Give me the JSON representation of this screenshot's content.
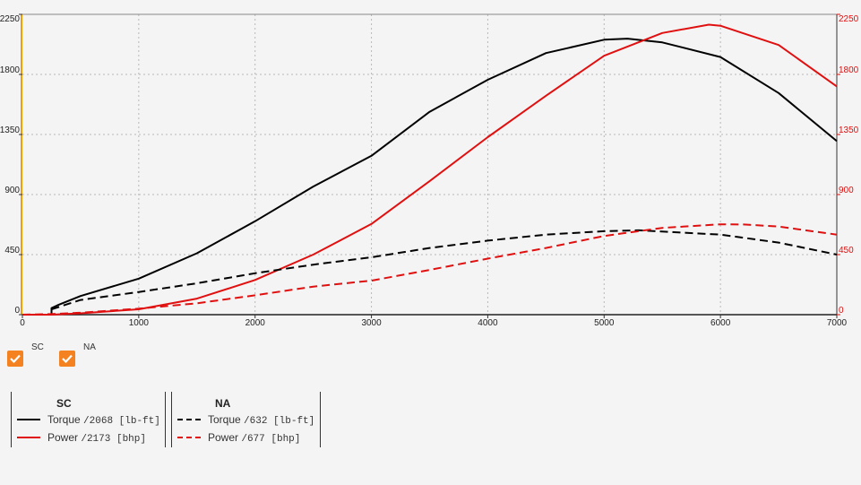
{
  "chart_data": {
    "type": "line",
    "x_range": [
      0,
      7000
    ],
    "x_ticks": [
      0,
      1000,
      2000,
      3000,
      4000,
      5000,
      6000,
      7000
    ],
    "y_left_range": [
      0,
      2250
    ],
    "y_left_ticks": [
      0,
      450,
      900,
      1350,
      1800,
      2250
    ],
    "y_right_range": [
      0,
      2250
    ],
    "y_right_ticks": [
      0,
      450,
      900,
      1350,
      1800,
      2250
    ],
    "grid": true,
    "colors": {
      "torque": "#000000",
      "power": "#e01010",
      "right_axis": "#e01010",
      "left_edge": "#f0a000"
    },
    "series": [
      {
        "group": "SC",
        "metric": "Torque",
        "style": "solid",
        "x": [
          0,
          250,
          250,
          300,
          500,
          1000,
          1500,
          2000,
          2500,
          3000,
          3500,
          4000,
          4500,
          5000,
          5200,
          5500,
          6000,
          6500,
          7000
        ],
        "y": [
          0,
          0,
          50,
          70,
          140,
          270,
          460,
          700,
          960,
          1190,
          1520,
          1760,
          1960,
          2060,
          2068,
          2040,
          1930,
          1660,
          1300
        ]
      },
      {
        "group": "SC",
        "metric": "Power",
        "style": "solid",
        "x": [
          0,
          250,
          500,
          1000,
          1500,
          2000,
          2500,
          3000,
          3500,
          4000,
          4500,
          5000,
          5500,
          5900,
          6000,
          6500,
          7000
        ],
        "y": [
          0,
          0,
          10,
          40,
          120,
          260,
          450,
          680,
          1000,
          1330,
          1640,
          1940,
          2110,
          2173,
          2165,
          2020,
          1710
        ]
      },
      {
        "group": "NA",
        "metric": "Torque",
        "style": "dashed",
        "x": [
          250,
          500,
          1000,
          1500,
          2000,
          2500,
          3000,
          3500,
          4000,
          4500,
          5000,
          5300,
          6000,
          6500,
          7000
        ],
        "y": [
          40,
          110,
          170,
          235,
          310,
          375,
          430,
          500,
          555,
          600,
          625,
          632,
          600,
          540,
          450
        ]
      },
      {
        "group": "NA",
        "metric": "Power",
        "style": "dashed",
        "x": [
          0,
          250,
          500,
          1000,
          1500,
          2000,
          2500,
          3000,
          3500,
          4000,
          4500,
          5000,
          5500,
          6000,
          6200,
          6500,
          7000
        ],
        "y": [
          0,
          5,
          15,
          45,
          85,
          145,
          210,
          255,
          335,
          420,
          500,
          590,
          650,
          677,
          676,
          660,
          600
        ]
      }
    ]
  },
  "toggles": [
    {
      "label": "SC",
      "checked": true
    },
    {
      "label": "NA",
      "checked": true
    }
  ],
  "legend": {
    "sc": {
      "title": "SC",
      "torque_name": "Torque",
      "torque_value": "/2068 [lb-ft]",
      "power_name": "Power",
      "power_value": "/2173 [bhp]"
    },
    "na": {
      "title": "NA",
      "torque_name": "Torque",
      "torque_value": "/632 [lb-ft]",
      "power_name": "Power",
      "power_value": "/677 [bhp]"
    }
  }
}
